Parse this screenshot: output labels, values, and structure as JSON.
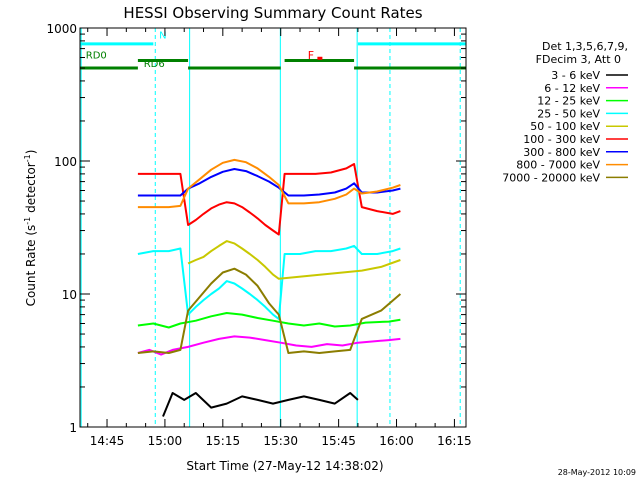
{
  "chart_data": {
    "type": "line",
    "title": "HESSI Observing Summary Count Rates",
    "xlabel": "Start Time (27-May-12 14:38:02)",
    "ylabel_main": "Count Rate (s",
    "ylabel_sup1": "-1",
    "ylabel_mid": " detector",
    "ylabel_sup2": "-1",
    "ylabel_end": ")",
    "y_scale": "log",
    "ylim": [
      1,
      1000
    ],
    "xlim_minutes": [
      38,
      138
    ],
    "x_ticks": [
      {
        "label": "14:45",
        "m": 45
      },
      {
        "label": "15:00",
        "m": 60
      },
      {
        "label": "15:15",
        "m": 75
      },
      {
        "label": "15:30",
        "m": 90
      },
      {
        "label": "15:45",
        "m": 105
      },
      {
        "label": "16:00",
        "m": 120
      },
      {
        "label": "16:15",
        "m": 135
      }
    ],
    "y_ticks": [
      {
        "label": "1",
        "v": 1
      },
      {
        "label": "10",
        "v": 10
      },
      {
        "label": "100",
        "v": 100
      },
      {
        "label": "1000",
        "v": 1000
      }
    ],
    "legend_header": [
      "Det 1,3,5,6,7,9,",
      "FDecim 3, Att 0"
    ],
    "series": [
      {
        "name": "3 - 6 keV",
        "color": "#000000",
        "points": [
          [
            59.5,
            1.2
          ],
          [
            62,
            1.8
          ],
          [
            65,
            1.6
          ],
          [
            68,
            1.8
          ],
          [
            72,
            1.4
          ],
          [
            76,
            1.5
          ],
          [
            80,
            1.7
          ],
          [
            84,
            1.6
          ],
          [
            88,
            1.5
          ],
          [
            92,
            1.6
          ],
          [
            96,
            1.7
          ],
          [
            100,
            1.6
          ],
          [
            104,
            1.5
          ],
          [
            108,
            1.8
          ],
          [
            110,
            1.6
          ]
        ]
      },
      {
        "name": "6 - 12 keV",
        "color": "#ff00ff",
        "points": [
          [
            53,
            3.6
          ],
          [
            56,
            3.8
          ],
          [
            59,
            3.5
          ],
          [
            62,
            3.8
          ],
          [
            66,
            4.0
          ],
          [
            70,
            4.3
          ],
          [
            74,
            4.6
          ],
          [
            78,
            4.8
          ],
          [
            82,
            4.7
          ],
          [
            86,
            4.5
          ],
          [
            90,
            4.3
          ],
          [
            94,
            4.1
          ],
          [
            98,
            4.0
          ],
          [
            102,
            4.2
          ],
          [
            106,
            4.1
          ],
          [
            110,
            4.3
          ],
          [
            118,
            4.5
          ],
          [
            121,
            4.6
          ]
        ]
      },
      {
        "name": "12 - 25 keV",
        "color": "#00ff00",
        "points": [
          [
            53,
            5.8
          ],
          [
            57,
            6.0
          ],
          [
            61,
            5.6
          ],
          [
            64,
            6.0
          ],
          [
            68,
            6.3
          ],
          [
            72,
            6.8
          ],
          [
            76,
            7.2
          ],
          [
            80,
            7.0
          ],
          [
            84,
            6.6
          ],
          [
            88,
            6.3
          ],
          [
            92,
            6.0
          ],
          [
            96,
            5.8
          ],
          [
            100,
            6.0
          ],
          [
            104,
            5.7
          ],
          [
            108,
            5.8
          ],
          [
            112,
            6.1
          ],
          [
            118,
            6.2
          ],
          [
            121,
            6.4
          ]
        ]
      },
      {
        "name": "25 - 50 keV",
        "color": "#00ffff",
        "points": [
          [
            53,
            20
          ],
          [
            57,
            21
          ],
          [
            61,
            21
          ],
          [
            64,
            22
          ],
          [
            66,
            7
          ],
          [
            68,
            8
          ],
          [
            70,
            9
          ],
          [
            72,
            10
          ],
          [
            74,
            11
          ],
          [
            76,
            12.5
          ],
          [
            78,
            12
          ],
          [
            80,
            11
          ],
          [
            82,
            10
          ],
          [
            84,
            9
          ],
          [
            86,
            8
          ],
          [
            88,
            7
          ],
          [
            89.5,
            6.5
          ],
          [
            91,
            20
          ],
          [
            95,
            20
          ],
          [
            99,
            21
          ],
          [
            103,
            21
          ],
          [
            107,
            22
          ],
          [
            109,
            23
          ],
          [
            111,
            20
          ],
          [
            115,
            20
          ],
          [
            119,
            21
          ],
          [
            121,
            22
          ]
        ]
      },
      {
        "name": "50 - 100 keV",
        "color": "#c8c800",
        "points": [
          [
            66,
            17
          ],
          [
            68,
            18
          ],
          [
            70,
            19
          ],
          [
            72,
            21
          ],
          [
            74,
            23
          ],
          [
            76,
            25
          ],
          [
            78,
            24
          ],
          [
            80,
            22
          ],
          [
            82,
            20
          ],
          [
            84,
            18
          ],
          [
            86,
            16
          ],
          [
            88,
            14
          ],
          [
            89.5,
            13
          ],
          [
            111,
            15
          ],
          [
            116,
            16
          ],
          [
            121,
            18
          ]
        ]
      },
      {
        "name": "100 - 300 keV",
        "color": "#ff0000",
        "points": [
          [
            53,
            80
          ],
          [
            57,
            80
          ],
          [
            61,
            80
          ],
          [
            64,
            80
          ],
          [
            66,
            33
          ],
          [
            68,
            36
          ],
          [
            70,
            40
          ],
          [
            72,
            44
          ],
          [
            74,
            47
          ],
          [
            76,
            49
          ],
          [
            78,
            48
          ],
          [
            80,
            45
          ],
          [
            82,
            41
          ],
          [
            84,
            37
          ],
          [
            86,
            33
          ],
          [
            88,
            30
          ],
          [
            89.5,
            28
          ],
          [
            91,
            80
          ],
          [
            95,
            80
          ],
          [
            99,
            80
          ],
          [
            103,
            82
          ],
          [
            107,
            88
          ],
          [
            109,
            95
          ],
          [
            111,
            45
          ],
          [
            115,
            42
          ],
          [
            119,
            40
          ],
          [
            121,
            42
          ]
        ]
      },
      {
        "name": "300 - 800 keV",
        "color": "#0000ff",
        "points": [
          [
            53,
            55
          ],
          [
            57,
            55
          ],
          [
            61,
            55
          ],
          [
            64,
            55
          ],
          [
            66,
            62
          ],
          [
            69,
            68
          ],
          [
            72,
            76
          ],
          [
            75,
            83
          ],
          [
            78,
            87
          ],
          [
            81,
            84
          ],
          [
            84,
            77
          ],
          [
            87,
            70
          ],
          [
            89.5,
            63
          ],
          [
            92,
            55
          ],
          [
            96,
            55
          ],
          [
            100,
            56
          ],
          [
            104,
            58
          ],
          [
            107,
            62
          ],
          [
            109,
            68
          ],
          [
            111,
            58
          ],
          [
            115,
            58
          ],
          [
            119,
            60
          ],
          [
            121,
            62
          ]
        ]
      },
      {
        "name": "800 - 7000 keV",
        "color": "#ff8c00",
        "points": [
          [
            53,
            45
          ],
          [
            57,
            45
          ],
          [
            61,
            45
          ],
          [
            64,
            46
          ],
          [
            66,
            62
          ],
          [
            69,
            73
          ],
          [
            72,
            86
          ],
          [
            75,
            97
          ],
          [
            78,
            102
          ],
          [
            81,
            98
          ],
          [
            84,
            88
          ],
          [
            87,
            76
          ],
          [
            89.5,
            66
          ],
          [
            92,
            48
          ],
          [
            96,
            48
          ],
          [
            100,
            49
          ],
          [
            104,
            52
          ],
          [
            107,
            56
          ],
          [
            109,
            62
          ],
          [
            111,
            57
          ],
          [
            115,
            59
          ],
          [
            119,
            63
          ],
          [
            121,
            66
          ]
        ]
      },
      {
        "name": "7000 - 20000 keV",
        "color": "#8b7d00",
        "points": [
          [
            53,
            3.6
          ],
          [
            57,
            3.7
          ],
          [
            61,
            3.6
          ],
          [
            64,
            3.8
          ],
          [
            66,
            7.5
          ],
          [
            69,
            9.5
          ],
          [
            72,
            12
          ],
          [
            75,
            14.5
          ],
          [
            78,
            15.5
          ],
          [
            81,
            14
          ],
          [
            84,
            11.5
          ],
          [
            87,
            8.5
          ],
          [
            89.5,
            7
          ],
          [
            92,
            3.6
          ],
          [
            96,
            3.7
          ],
          [
            100,
            3.6
          ],
          [
            104,
            3.7
          ],
          [
            108,
            3.8
          ],
          [
            111,
            6.5
          ],
          [
            116,
            7.5
          ],
          [
            121,
            10
          ]
        ]
      }
    ],
    "bars": [
      {
        "label": "RD0",
        "color": "#008000",
        "level": 500,
        "ranges": [
          [
            38,
            53
          ]
        ]
      },
      {
        "label": "RD6",
        "color": "#008000",
        "level": 570,
        "ranges": [
          [
            53,
            66
          ],
          [
            91,
            109
          ]
        ]
      },
      {
        "label": "",
        "color": "#008000",
        "level": 500,
        "ranges": [
          [
            66,
            90
          ],
          [
            109,
            138
          ]
        ]
      },
      {
        "label": "N",
        "color": "#00ffff",
        "level": 760,
        "ranges": [
          [
            38,
            57
          ],
          [
            110,
            138
          ]
        ]
      },
      {
        "label": "F",
        "color": "#ff0000",
        "level": 520,
        "ranges": []
      }
    ],
    "vlines": [
      {
        "m": 38.3,
        "color": "#00ffff",
        "dashed": false
      },
      {
        "m": 57.5,
        "color": "#00ffff",
        "dashed": true
      },
      {
        "m": 66.4,
        "color": "#00ffff",
        "dashed": false
      },
      {
        "m": 89.9,
        "color": "#00ffff",
        "dashed": false
      },
      {
        "m": 109.8,
        "color": "#00ffff",
        "dashed": false
      },
      {
        "m": 118.3,
        "color": "#00ffff",
        "dashed": true
      },
      {
        "m": 136.5,
        "color": "#00ffff",
        "dashed": true
      }
    ],
    "grid": false,
    "legend_position": "right"
  },
  "timestamp": "28-May-2012 10:09"
}
